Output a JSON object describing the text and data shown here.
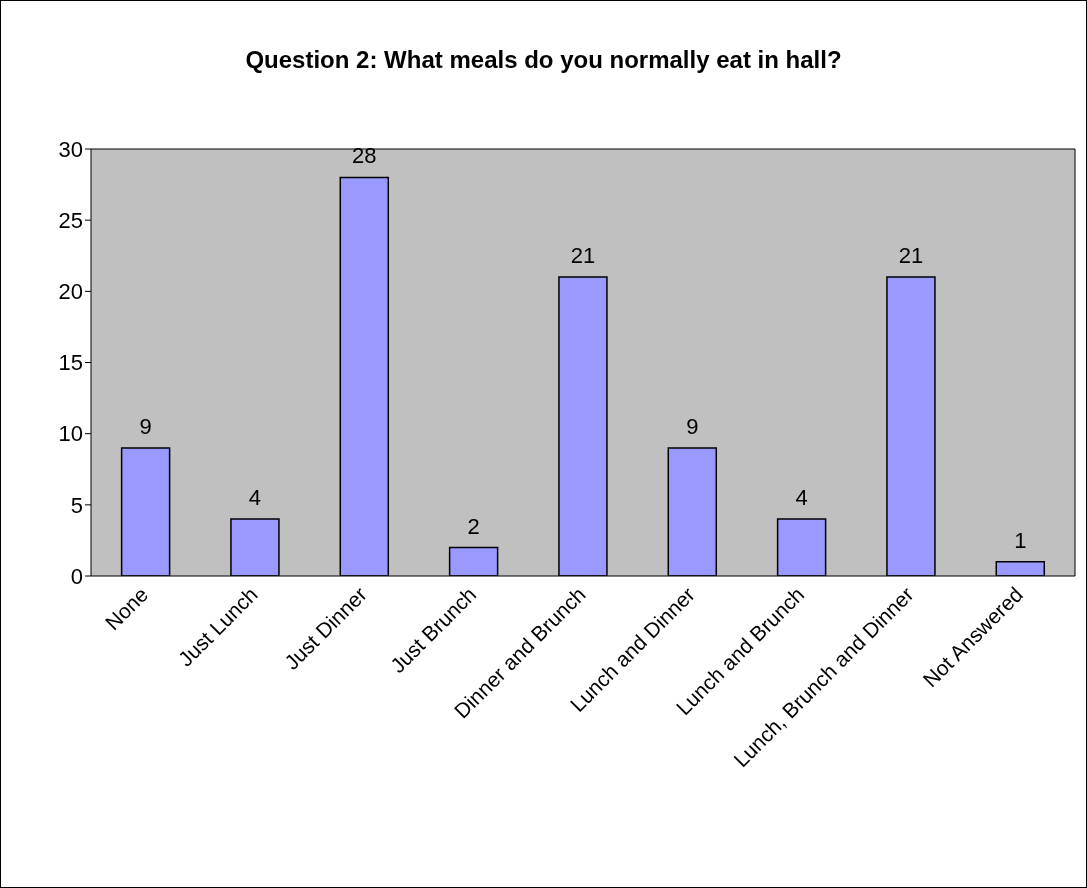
{
  "chart_data": {
    "type": "bar",
    "title": "Question 2: What meals do you normally eat in hall?",
    "categories": [
      "None",
      "Just Lunch",
      "Just Dinner",
      "Just Brunch",
      "Dinner and Brunch",
      "Lunch and Dinner",
      "Lunch and Brunch",
      "Lunch, Brunch and Dinner",
      "Not Answered"
    ],
    "values": [
      9,
      4,
      28,
      2,
      21,
      9,
      4,
      21,
      1
    ],
    "color": "#9999ff",
    "ylim": [
      0,
      30
    ],
    "yticks": [
      0,
      5,
      10,
      15,
      20,
      25,
      30
    ],
    "data_labels": true,
    "grid": false
  }
}
